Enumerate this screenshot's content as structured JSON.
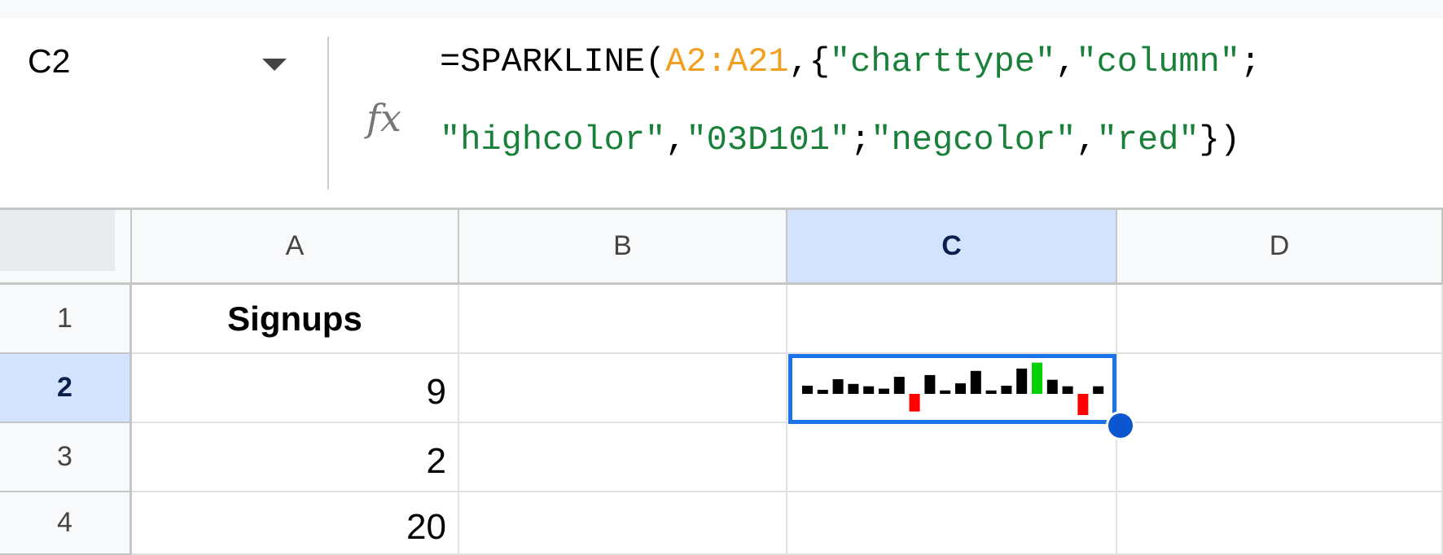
{
  "name_box": {
    "value": "C2"
  },
  "formula_bar": {
    "icon": "fx-icon",
    "line1": [
      {
        "t": "=SPARKLINE(",
        "c": "plain"
      },
      {
        "t": "A2:A21",
        "c": "ref"
      },
      {
        "t": ",{",
        "c": "plain"
      },
      {
        "t": "\"charttype\"",
        "c": "str"
      },
      {
        "t": ",",
        "c": "plain"
      },
      {
        "t": "\"column\"",
        "c": "str"
      },
      {
        "t": ";",
        "c": "plain"
      }
    ],
    "line2": [
      {
        "t": "\"highcolor\"",
        "c": "str"
      },
      {
        "t": ",",
        "c": "plain"
      },
      {
        "t": "\"03D101\"",
        "c": "str"
      },
      {
        "t": ";",
        "c": "plain"
      },
      {
        "t": "\"negcolor\"",
        "c": "str"
      },
      {
        "t": ",",
        "c": "plain"
      },
      {
        "t": "\"red\"",
        "c": "str"
      },
      {
        "t": "})",
        "c": "plain"
      }
    ]
  },
  "columns": [
    "A",
    "B",
    "C",
    "D"
  ],
  "rows": [
    "1",
    "2",
    "3",
    "4"
  ],
  "cells": {
    "A1": "Signups",
    "A2": "9",
    "A3": "2",
    "A4": "20"
  },
  "selected_cell": "C2",
  "sparkline": {
    "type": "column",
    "values": [
      9,
      2,
      20,
      12,
      8,
      4,
      24,
      -25,
      27,
      1,
      13,
      34,
      1,
      9,
      38,
      48,
      19,
      8,
      -31,
      8
    ],
    "color": "#000000",
    "highcolor": "#03D101",
    "negcolor": "#FF0000"
  }
}
